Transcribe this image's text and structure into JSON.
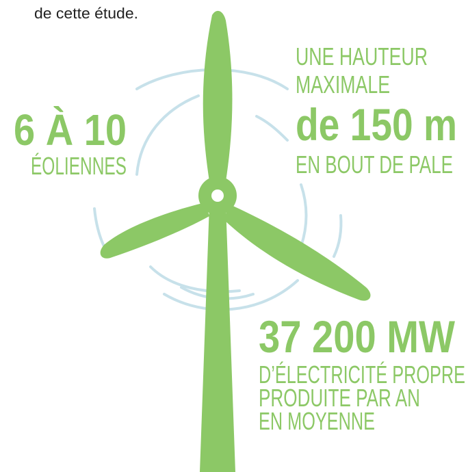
{
  "intro": "de cette étude.",
  "stats": [
    {
      "big": "6 À 10",
      "lines": [
        "ÉOLIENNES"
      ]
    },
    {
      "top": [
        "UNE HAUTEUR",
        "MAXIMALE"
      ],
      "big": "de 150 m",
      "lines": [
        "EN BOUT DE PALE"
      ]
    },
    {
      "big": "37 200 MW",
      "lines": [
        "D’ÉLECTRICITÉ PROPRE",
        "PRODUITE PAR AN",
        "EN MOYENNE"
      ]
    }
  ]
}
